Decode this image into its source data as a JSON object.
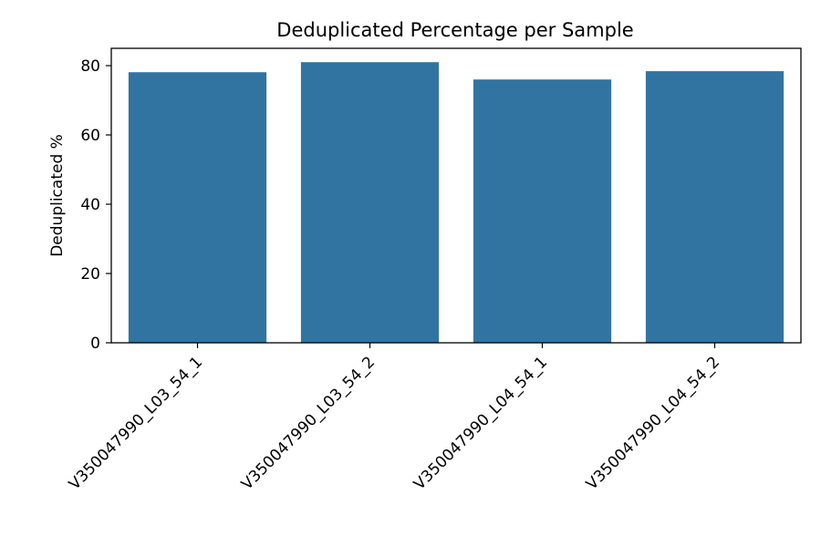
{
  "chart_data": {
    "type": "bar",
    "title": "Deduplicated Percentage per Sample",
    "xlabel": "",
    "ylabel": "Deduplicated %",
    "categories": [
      "V350047990_L03_54_1",
      "V350047990_L03_54_2",
      "V350047990_L04_54_1",
      "V350047990_L04_54_2"
    ],
    "values": [
      78.1,
      81.0,
      76.0,
      78.4
    ],
    "ylim": [
      0,
      85
    ],
    "yticks": [
      0,
      20,
      40,
      60,
      80
    ],
    "bar_color": "#3274a1",
    "grid": false,
    "legend": "none"
  }
}
